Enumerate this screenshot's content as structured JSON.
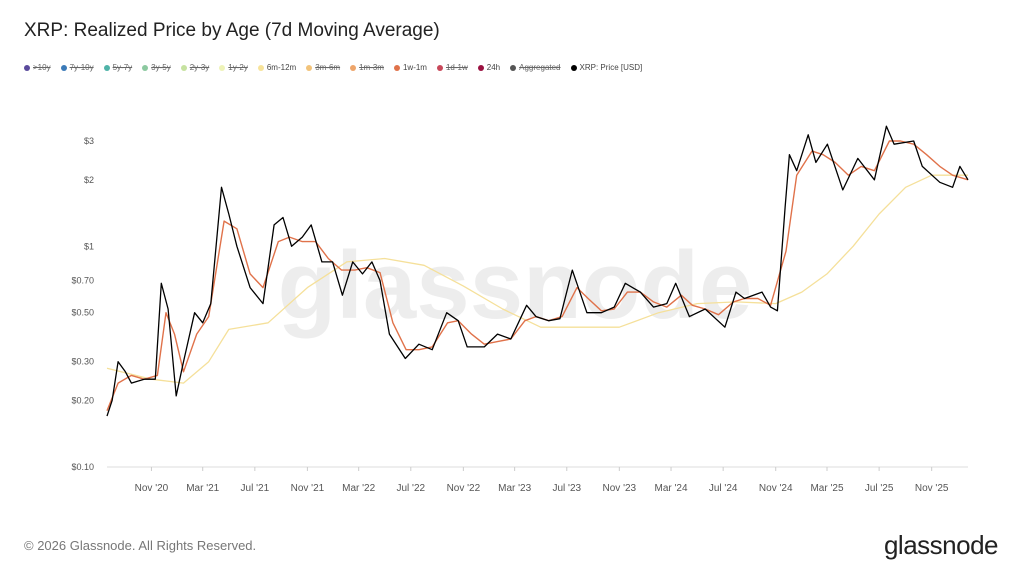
{
  "title": "XRP: Realized Price by Age (7d Moving Average)",
  "legend": [
    {
      "label": ">10y",
      "color": "#5a4a9c",
      "active": false
    },
    {
      "label": "7y-10y",
      "color": "#3b7ab8",
      "active": false
    },
    {
      "label": "5y-7y",
      "color": "#4fb3a8",
      "active": false
    },
    {
      "label": "3y-5y",
      "color": "#8cc9a0",
      "active": false
    },
    {
      "label": "2y-3y",
      "color": "#c6e2a0",
      "active": false
    },
    {
      "label": "1y-2y",
      "color": "#eef3b8",
      "active": false
    },
    {
      "label": "6m-12m",
      "color": "#f7e39a",
      "active": true
    },
    {
      "label": "3m-6m",
      "color": "#f2c37a",
      "active": false
    },
    {
      "label": "1m-3m",
      "color": "#eea56a",
      "active": false
    },
    {
      "label": "1w-1m",
      "color": "#e0724a",
      "active": true
    },
    {
      "label": "1d-1w",
      "color": "#c8485a",
      "active": false
    },
    {
      "label": "24h",
      "color": "#9a1040",
      "active": true
    },
    {
      "label": "Aggregated",
      "color": "#555555",
      "active": false
    },
    {
      "label": "XRP: Price [USD]",
      "color": "#000000",
      "active": true
    }
  ],
  "chart_data": {
    "type": "line",
    "y_scale": "log",
    "ylim": [
      0.1,
      4.6
    ],
    "y_ticks": [
      {
        "v": 0.1,
        "label": "$0.10"
      },
      {
        "v": 0.2,
        "label": "$0.20"
      },
      {
        "v": 0.3,
        "label": "$0.30"
      },
      {
        "v": 0.5,
        "label": "$0.50"
      },
      {
        "v": 0.7,
        "label": "$0.70"
      },
      {
        "v": 1,
        "label": "$1"
      },
      {
        "v": 2,
        "label": "$2"
      },
      {
        "v": 3,
        "label": "$3"
      }
    ],
    "xlim": [
      "2020-07-20",
      "2026-01-25"
    ],
    "x_ticks": [
      {
        "d": "2020-11-01",
        "label": "Nov '20"
      },
      {
        "d": "2021-03-01",
        "label": "Mar '21"
      },
      {
        "d": "2021-07-01",
        "label": "Jul '21"
      },
      {
        "d": "2021-11-01",
        "label": "Nov '21"
      },
      {
        "d": "2022-03-01",
        "label": "Mar '22"
      },
      {
        "d": "2022-07-01",
        "label": "Jul '22"
      },
      {
        "d": "2022-11-01",
        "label": "Nov '22"
      },
      {
        "d": "2023-03-01",
        "label": "Mar '23"
      },
      {
        "d": "2023-07-01",
        "label": "Jul '23"
      },
      {
        "d": "2023-11-01",
        "label": "Nov '23"
      },
      {
        "d": "2024-03-01",
        "label": "Mar '24"
      },
      {
        "d": "2024-07-01",
        "label": "Jul '24"
      },
      {
        "d": "2024-11-01",
        "label": "Nov '24"
      },
      {
        "d": "2025-03-01",
        "label": "Mar '25"
      },
      {
        "d": "2025-07-01",
        "label": "Jul '25"
      },
      {
        "d": "2025-11-01",
        "label": "Nov '25"
      }
    ],
    "grid": false,
    "watermark": "glassnode",
    "series": [
      {
        "name": "6m-12m",
        "color": "#f5e09a",
        "width": 1.3,
        "points": [
          [
            "2020-07-20",
            0.28
          ],
          [
            "2020-11-01",
            0.25
          ],
          [
            "2021-01-15",
            0.24
          ],
          [
            "2021-03-15",
            0.3
          ],
          [
            "2021-05-01",
            0.42
          ],
          [
            "2021-08-01",
            0.45
          ],
          [
            "2021-11-01",
            0.65
          ],
          [
            "2022-02-01",
            0.85
          ],
          [
            "2022-05-01",
            0.88
          ],
          [
            "2022-08-01",
            0.82
          ],
          [
            "2022-11-01",
            0.66
          ],
          [
            "2023-02-01",
            0.52
          ],
          [
            "2023-05-01",
            0.43
          ],
          [
            "2023-08-01",
            0.43
          ],
          [
            "2023-11-01",
            0.43
          ],
          [
            "2024-02-01",
            0.5
          ],
          [
            "2024-05-01",
            0.55
          ],
          [
            "2024-08-01",
            0.56
          ],
          [
            "2024-11-01",
            0.55
          ],
          [
            "2025-01-01",
            0.62
          ],
          [
            "2025-03-01",
            0.75
          ],
          [
            "2025-05-01",
            1.0
          ],
          [
            "2025-07-01",
            1.4
          ],
          [
            "2025-09-01",
            1.85
          ],
          [
            "2025-11-01",
            2.1
          ],
          [
            "2026-01-25",
            2.1
          ]
        ]
      },
      {
        "name": "1w-1m",
        "color": "#e0724a",
        "width": 1.4,
        "points": [
          [
            "2020-07-20",
            0.18
          ],
          [
            "2020-08-15",
            0.24
          ],
          [
            "2020-09-15",
            0.26
          ],
          [
            "2020-10-15",
            0.25
          ],
          [
            "2020-11-15",
            0.26
          ],
          [
            "2020-12-05",
            0.5
          ],
          [
            "2020-12-25",
            0.4
          ],
          [
            "2021-01-15",
            0.27
          ],
          [
            "2021-02-15",
            0.4
          ],
          [
            "2021-03-15",
            0.48
          ],
          [
            "2021-04-20",
            1.3
          ],
          [
            "2021-05-20",
            1.2
          ],
          [
            "2021-06-20",
            0.75
          ],
          [
            "2021-07-20",
            0.65
          ],
          [
            "2021-08-25",
            1.05
          ],
          [
            "2021-09-20",
            1.1
          ],
          [
            "2021-10-20",
            1.05
          ],
          [
            "2021-11-20",
            1.05
          ],
          [
            "2021-12-20",
            0.88
          ],
          [
            "2022-01-20",
            0.78
          ],
          [
            "2022-02-20",
            0.78
          ],
          [
            "2022-03-20",
            0.8
          ],
          [
            "2022-04-20",
            0.76
          ],
          [
            "2022-05-20",
            0.45
          ],
          [
            "2022-06-20",
            0.34
          ],
          [
            "2022-07-20",
            0.34
          ],
          [
            "2022-08-20",
            0.35
          ],
          [
            "2022-09-25",
            0.45
          ],
          [
            "2022-10-20",
            0.46
          ],
          [
            "2022-11-20",
            0.4
          ],
          [
            "2022-12-20",
            0.36
          ],
          [
            "2023-01-20",
            0.37
          ],
          [
            "2023-02-20",
            0.38
          ],
          [
            "2023-03-25",
            0.46
          ],
          [
            "2023-04-20",
            0.48
          ],
          [
            "2023-05-20",
            0.46
          ],
          [
            "2023-06-20",
            0.48
          ],
          [
            "2023-07-25",
            0.65
          ],
          [
            "2023-08-20",
            0.58
          ],
          [
            "2023-09-20",
            0.51
          ],
          [
            "2023-10-20",
            0.52
          ],
          [
            "2023-11-20",
            0.62
          ],
          [
            "2023-12-20",
            0.62
          ],
          [
            "2024-01-20",
            0.56
          ],
          [
            "2024-02-20",
            0.53
          ],
          [
            "2024-03-25",
            0.6
          ],
          [
            "2024-04-20",
            0.54
          ],
          [
            "2024-05-20",
            0.52
          ],
          [
            "2024-06-20",
            0.49
          ],
          [
            "2024-07-25",
            0.56
          ],
          [
            "2024-08-20",
            0.58
          ],
          [
            "2024-09-20",
            0.58
          ],
          [
            "2024-10-20",
            0.54
          ],
          [
            "2024-11-25",
            0.95
          ],
          [
            "2024-12-20",
            2.1
          ],
          [
            "2025-01-25",
            2.7
          ],
          [
            "2025-02-20",
            2.6
          ],
          [
            "2025-03-20",
            2.4
          ],
          [
            "2025-04-20",
            2.1
          ],
          [
            "2025-05-20",
            2.3
          ],
          [
            "2025-06-20",
            2.2
          ],
          [
            "2025-07-25",
            3.0
          ],
          [
            "2025-08-20",
            3.0
          ],
          [
            "2025-09-20",
            2.9
          ],
          [
            "2025-10-20",
            2.6
          ],
          [
            "2025-11-20",
            2.3
          ],
          [
            "2025-12-20",
            2.1
          ],
          [
            "2026-01-25",
            2.0
          ]
        ]
      },
      {
        "name": "XRP: Price [USD]",
        "color": "#000000",
        "width": 1.3,
        "points": [
          [
            "2020-07-20",
            0.17
          ],
          [
            "2020-08-01",
            0.2
          ],
          [
            "2020-08-15",
            0.3
          ],
          [
            "2020-09-01",
            0.27
          ],
          [
            "2020-09-15",
            0.24
          ],
          [
            "2020-10-15",
            0.25
          ],
          [
            "2020-11-10",
            0.25
          ],
          [
            "2020-11-24",
            0.68
          ],
          [
            "2020-12-10",
            0.52
          ],
          [
            "2020-12-29",
            0.21
          ],
          [
            "2021-01-15",
            0.3
          ],
          [
            "2021-02-10",
            0.5
          ],
          [
            "2021-03-01",
            0.45
          ],
          [
            "2021-03-20",
            0.55
          ],
          [
            "2021-04-14",
            1.85
          ],
          [
            "2021-05-01",
            1.4
          ],
          [
            "2021-05-20",
            1.0
          ],
          [
            "2021-06-20",
            0.65
          ],
          [
            "2021-07-20",
            0.55
          ],
          [
            "2021-08-15",
            1.25
          ],
          [
            "2021-09-05",
            1.35
          ],
          [
            "2021-09-25",
            1.0
          ],
          [
            "2021-10-20",
            1.1
          ],
          [
            "2021-11-10",
            1.25
          ],
          [
            "2021-12-05",
            0.85
          ],
          [
            "2021-12-30",
            0.85
          ],
          [
            "2022-01-22",
            0.6
          ],
          [
            "2022-02-15",
            0.85
          ],
          [
            "2022-03-10",
            0.75
          ],
          [
            "2022-04-01",
            0.85
          ],
          [
            "2022-04-20",
            0.7
          ],
          [
            "2022-05-12",
            0.4
          ],
          [
            "2022-06-18",
            0.31
          ],
          [
            "2022-07-20",
            0.36
          ],
          [
            "2022-08-20",
            0.34
          ],
          [
            "2022-09-23",
            0.5
          ],
          [
            "2022-10-20",
            0.46
          ],
          [
            "2022-11-10",
            0.35
          ],
          [
            "2022-12-20",
            0.35
          ],
          [
            "2023-01-20",
            0.4
          ],
          [
            "2023-02-20",
            0.38
          ],
          [
            "2023-03-29",
            0.54
          ],
          [
            "2023-04-20",
            0.48
          ],
          [
            "2023-05-20",
            0.46
          ],
          [
            "2023-06-15",
            0.47
          ],
          [
            "2023-07-14",
            0.78
          ],
          [
            "2023-08-17",
            0.5
          ],
          [
            "2023-09-20",
            0.5
          ],
          [
            "2023-10-20",
            0.53
          ],
          [
            "2023-11-15",
            0.68
          ],
          [
            "2023-12-20",
            0.62
          ],
          [
            "2024-01-20",
            0.53
          ],
          [
            "2024-02-20",
            0.55
          ],
          [
            "2024-03-12",
            0.68
          ],
          [
            "2024-04-13",
            0.48
          ],
          [
            "2024-05-20",
            0.52
          ],
          [
            "2024-07-05",
            0.43
          ],
          [
            "2024-07-31",
            0.62
          ],
          [
            "2024-08-20",
            0.58
          ],
          [
            "2024-09-30",
            0.62
          ],
          [
            "2024-10-20",
            0.53
          ],
          [
            "2024-11-05",
            0.51
          ],
          [
            "2024-11-23",
            1.5
          ],
          [
            "2024-12-03",
            2.6
          ],
          [
            "2024-12-20",
            2.2
          ],
          [
            "2025-01-16",
            3.2
          ],
          [
            "2025-02-03",
            2.4
          ],
          [
            "2025-03-02",
            2.9
          ],
          [
            "2025-04-07",
            1.8
          ],
          [
            "2025-05-12",
            2.5
          ],
          [
            "2025-06-20",
            2.0
          ],
          [
            "2025-07-18",
            3.5
          ],
          [
            "2025-08-05",
            2.9
          ],
          [
            "2025-09-20",
            3.0
          ],
          [
            "2025-10-10",
            2.3
          ],
          [
            "2025-11-20",
            1.95
          ],
          [
            "2025-12-20",
            1.85
          ],
          [
            "2026-01-06",
            2.3
          ],
          [
            "2026-01-25",
            2.0
          ]
        ]
      }
    ]
  },
  "footer": "© 2026 Glassnode. All Rights Reserved.",
  "logo": "glassnode"
}
